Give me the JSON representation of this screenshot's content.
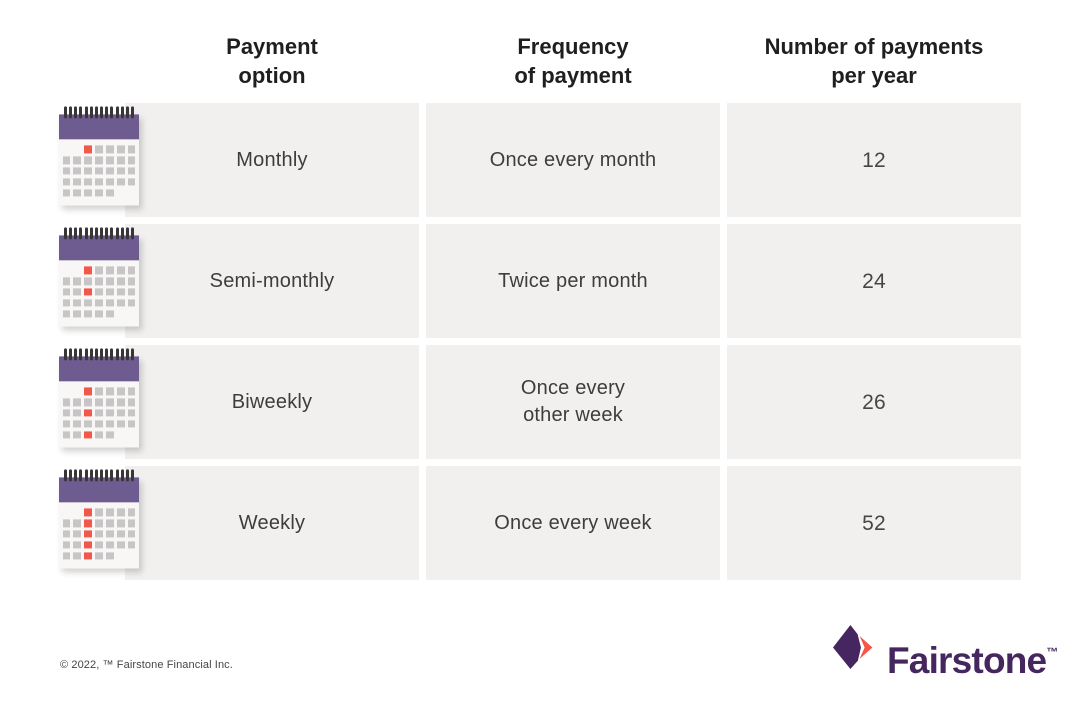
{
  "table": {
    "headers": [
      {
        "label": "Payment\noption"
      },
      {
        "label": "Frequency\nof payment"
      },
      {
        "label": "Number of payments\nper year"
      }
    ],
    "rows": [
      {
        "option": "Monthly",
        "frequency": "Once every month",
        "payments_per_year": "12",
        "calendar": {
          "icon": "calendar-monthly-icon",
          "red_weeks": [
            1
          ]
        }
      },
      {
        "option": "Semi-monthly",
        "frequency": "Twice per month",
        "payments_per_year": "24",
        "calendar": {
          "icon": "calendar-semimonthly-icon",
          "red_weeks": [
            1,
            3
          ]
        }
      },
      {
        "option": "Biweekly",
        "frequency": "Once every\nother week",
        "payments_per_year": "26",
        "calendar": {
          "icon": "calendar-biweekly-icon",
          "red_weeks": [
            1,
            3,
            5
          ]
        }
      },
      {
        "option": "Weekly",
        "frequency": "Once every week",
        "payments_per_year": "52",
        "calendar": {
          "icon": "calendar-weekly-icon",
          "red_weeks": [
            1,
            2,
            3,
            4,
            5
          ]
        }
      }
    ]
  },
  "chart_data": {
    "type": "table",
    "title": "",
    "columns": [
      "Payment option",
      "Frequency of payment",
      "Number of payments per year"
    ],
    "rows": [
      [
        "Monthly",
        "Once every month",
        12
      ],
      [
        "Semi-monthly",
        "Twice per month",
        24
      ],
      [
        "Biweekly",
        "Once every other week",
        26
      ],
      [
        "Weekly",
        "Once every week",
        52
      ]
    ]
  },
  "footer": {
    "copyright": "© 2022, ™ Fairstone Financial Inc.",
    "logo_text": "Fairstone",
    "trademark": "™"
  },
  "colors": {
    "cell_bg": "#f1f0ef",
    "calendar_purple": "#6e5b8f",
    "calendar_red": "#f1584b",
    "calendar_gray_square": "#c7c5c5",
    "logo_purple": "#45265e",
    "logo_coral": "#f4564a",
    "header_text": "#211e1f",
    "body_text": "#3e3d3d"
  }
}
